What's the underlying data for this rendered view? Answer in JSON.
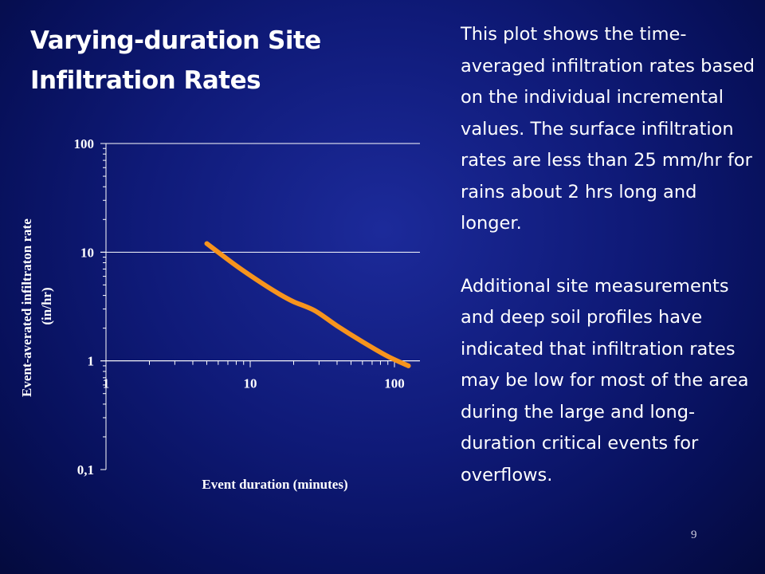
{
  "slide": {
    "title": "Varying-duration Site Infiltration Rates",
    "paragraph1": "This plot shows the time-averaged infiltration rates based on the individual incremental values. The surface infiltration rates are less than 25 mm/hr for rains about 2 hrs long and longer.",
    "paragraph2": "Additional site measurements and deep soil profiles have indicated that infiltration rates may be low for most of the area during the large and long-duration critical events for overflows.",
    "page_number": "9"
  },
  "chart_data": {
    "type": "line",
    "title": "",
    "xlabel": "Event duration (minutes)",
    "ylabel": "Event-averated infiltraton rate (in/hr)",
    "ylabel_lines": [
      "Event-averated infiltraton rate",
      "(in/hr)"
    ],
    "xscale": "log",
    "yscale": "log",
    "xlim": [
      1,
      150
    ],
    "ylim": [
      0.1,
      100
    ],
    "x_ticks": [
      "1",
      "10",
      "100"
    ],
    "y_ticks": [
      "100",
      "10",
      "1",
      "0,1"
    ],
    "grid": "horizontal major",
    "line_color": "#f7941d",
    "series": [
      {
        "x": [
          5,
          8,
          12,
          16,
          20,
          28,
          40,
          60,
          90,
          125
        ],
        "y": [
          12,
          7.5,
          5.2,
          4.1,
          3.5,
          2.9,
          2.1,
          1.5,
          1.1,
          0.9
        ]
      }
    ]
  }
}
